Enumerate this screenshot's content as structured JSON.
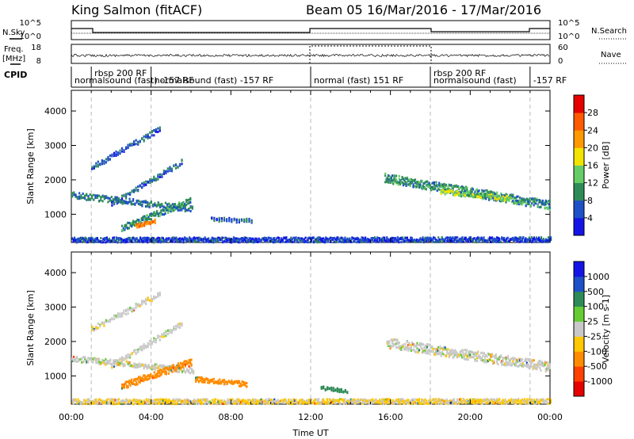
{
  "header": {
    "station": "King Salmon (fitACF)",
    "beam": "Beam 05",
    "dates": "16/Mar/2016 - 17/Mar/2016"
  },
  "status_panels": {
    "nsky_label": "N.Sky",
    "nsearch_label": "N.Search",
    "nsky_ticks": [
      "10^5",
      "10^0"
    ],
    "nsearch_ticks": [
      "10^5",
      "10^0"
    ],
    "freq_label_1": "Freq.",
    "freq_label_2": "[MHz]",
    "freq_ticks": [
      "18",
      "8"
    ],
    "nave_label": "Nave",
    "nave_ticks": [
      "60",
      "0"
    ],
    "cpid_label": "CPID",
    "cpid_segments": [
      {
        "label": "rbsp 200 RF",
        "start": 1.0,
        "row": 0
      },
      {
        "label": "normalsound (fast) -157 RF",
        "start": 0.0,
        "row": 1
      },
      {
        "label": "normalsound (fast) -157 RF",
        "start": 4.0,
        "row": 1
      },
      {
        "label": "normal (fast) 151 RF",
        "start": 12.0,
        "row": 1
      },
      {
        "label": "rbsp 200 RF",
        "start": 18.0,
        "row": 0
      },
      {
        "label": "normalsound (fast)",
        "start": 18.0,
        "row": 1
      },
      {
        "label": "-157 RF",
        "start": 23.0,
        "row": 1
      }
    ]
  },
  "colors": {
    "power_scale": [
      "#1414e6",
      "#1e50c8",
      "#2e8b57",
      "#66cc66",
      "#f2e400",
      "#ff9900",
      "#ff5a00",
      "#e60000"
    ],
    "velocity_scale": [
      "#e60000",
      "#ff4000",
      "#ff8c00",
      "#ffc800",
      "#c8c8c8",
      "#66cc33",
      "#2e8b57",
      "#1e50c8",
      "#1414e6"
    ]
  },
  "chart_data": [
    {
      "type": "heatmap",
      "title": "",
      "xlabel": "",
      "ylabel": "Slant Range [km]",
      "xlim": [
        0,
        24
      ],
      "ylim": [
        180,
        4600
      ],
      "yticks": [
        1000,
        2000,
        3000,
        4000
      ],
      "vertical_reference_lines": [
        1,
        4,
        12,
        18,
        23
      ],
      "colorbar": {
        "label": "Power [dB]",
        "ticks": [
          "4",
          "8",
          "12",
          "16",
          "20",
          "24",
          "28"
        ],
        "range": [
          0,
          30
        ]
      },
      "features": [
        {
          "t_start": 0.0,
          "t_end": 6.1,
          "range_start": 1550,
          "range_end": 1150,
          "dt": 0.18,
          "scatter": 90,
          "value": 8
        },
        {
          "t_start": 1.0,
          "t_end": 4.5,
          "range_start": 2350,
          "range_end": 3500,
          "dt": 0.2,
          "scatter": 80,
          "value": 6
        },
        {
          "t_start": 2.0,
          "t_end": 5.5,
          "range_start": 1300,
          "range_end": 2500,
          "dt": 0.2,
          "scatter": 80,
          "value": 7
        },
        {
          "t_start": 2.5,
          "t_end": 6.0,
          "range_start": 600,
          "range_end": 1400,
          "dt": 0.14,
          "scatter": 90,
          "value": 10
        },
        {
          "t_start": 3.2,
          "t_end": 4.2,
          "range_start": 650,
          "range_end": 800,
          "dt": 0.12,
          "scatter": 50,
          "value": 24
        },
        {
          "t_start": 7.0,
          "t_end": 9.1,
          "range_start": 850,
          "range_end": 800,
          "dt": 0.25,
          "scatter": 60,
          "value": 6
        },
        {
          "t_start": 15.7,
          "t_end": 24.0,
          "range_start": 2050,
          "range_end": 1250,
          "dt": 0.1,
          "scatter": 130,
          "value": 10
        },
        {
          "t_start": 18.5,
          "t_end": 22.0,
          "range_start": 1650,
          "range_end": 1450,
          "dt": 0.2,
          "scatter": 70,
          "value": 15
        },
        {
          "t_start": 0.0,
          "t_end": 24.0,
          "range_start": 250,
          "range_end": 260,
          "dt": 0.12,
          "scatter": 70,
          "value": 5
        }
      ]
    },
    {
      "type": "heatmap",
      "title": "",
      "xlabel": "Time UT",
      "ylabel": "Slant Range [km]",
      "xlim": [
        0,
        24
      ],
      "ylim": [
        180,
        4600
      ],
      "yticks": [
        1000,
        2000,
        3000,
        4000
      ],
      "xticks": [
        "00:00",
        "04:00",
        "08:00",
        "12:00",
        "16:00",
        "20:00",
        "00:00"
      ],
      "vertical_reference_lines": [
        1,
        4,
        12,
        18,
        23
      ],
      "colorbar": {
        "label": "Velocity [m s-1]",
        "ticks": [
          "-1000",
          "-500",
          "-100",
          "-25",
          "25",
          "100",
          "500",
          "1000"
        ],
        "range": [
          -1200,
          1200
        ]
      },
      "features": [
        {
          "t_start": 0.0,
          "t_end": 6.1,
          "range_start": 1500,
          "range_end": 1150,
          "dt": 0.16,
          "scatter": 80,
          "value": 0
        },
        {
          "t_start": 1.0,
          "t_end": 4.5,
          "range_start": 2350,
          "range_end": 3400,
          "dt": 0.2,
          "scatter": 80,
          "value": 0
        },
        {
          "t_start": 2.0,
          "t_end": 5.5,
          "range_start": 1300,
          "range_end": 2500,
          "dt": 0.2,
          "scatter": 80,
          "value": 0
        },
        {
          "t_start": 2.5,
          "t_end": 6.0,
          "range_start": 700,
          "range_end": 1400,
          "dt": 0.12,
          "scatter": 100,
          "value": -250
        },
        {
          "t_start": 6.2,
          "t_end": 8.8,
          "range_start": 900,
          "range_end": 750,
          "dt": 0.15,
          "scatter": 70,
          "value": -300
        },
        {
          "t_start": 12.5,
          "t_end": 13.8,
          "range_start": 650,
          "range_end": 550,
          "dt": 0.2,
          "scatter": 50,
          "value": 200
        },
        {
          "t_start": 15.8,
          "t_end": 24.0,
          "range_start": 1950,
          "range_end": 1250,
          "dt": 0.1,
          "scatter": 140,
          "value": 0
        },
        {
          "t_start": 0.0,
          "t_end": 24.0,
          "range_start": 250,
          "range_end": 260,
          "dt": 0.12,
          "scatter": 70,
          "value": -30
        }
      ]
    }
  ]
}
